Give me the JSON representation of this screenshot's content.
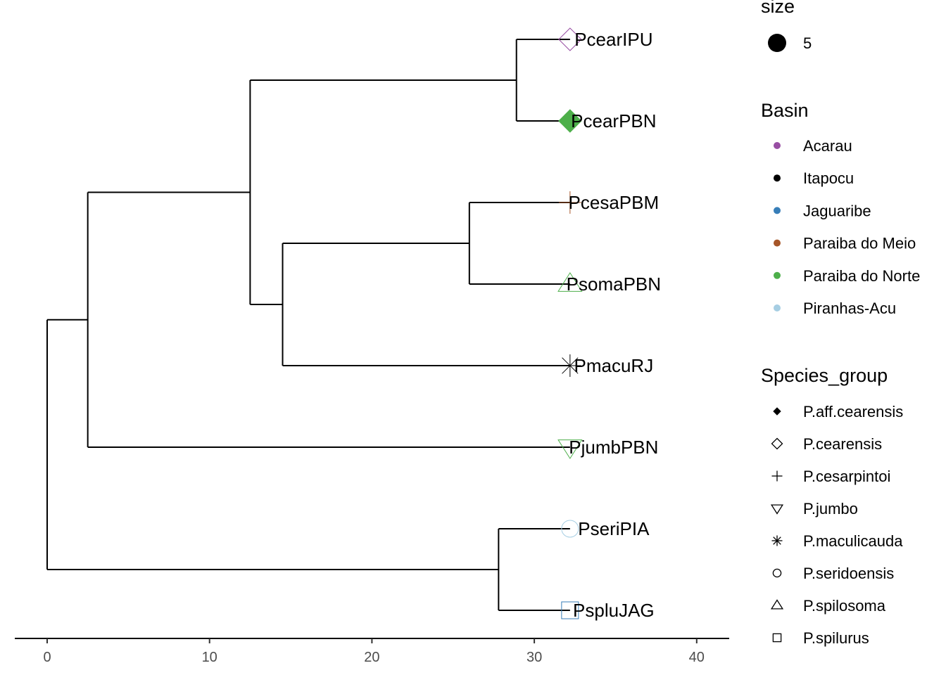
{
  "chart_data": {
    "type": "phylogenetic-tree",
    "xlim": [
      0,
      42
    ],
    "x_ticks": [
      0,
      10,
      20,
      30,
      40
    ],
    "tips": [
      {
        "label": "PcearIPU",
        "x": 32.2,
        "shape": "diamond-open",
        "color": "#984EA3"
      },
      {
        "label": "PcearPBN",
        "x": 32.2,
        "shape": "diamond-filled",
        "color": "#4DAF4A"
      },
      {
        "label": "PcesaPBM",
        "x": 32.2,
        "shape": "plus",
        "color": "#A65628"
      },
      {
        "label": "PsomaPBN",
        "x": 32.2,
        "shape": "triangle-up",
        "color": "#4DAF4A"
      },
      {
        "label": "PmacuRJ",
        "x": 32.2,
        "shape": "asterisk",
        "color": "#000000"
      },
      {
        "label": "PjumbPBN",
        "x": 32.2,
        "shape": "triangle-down",
        "color": "#4DAF4A"
      },
      {
        "label": "PseriPIA",
        "x": 32.2,
        "shape": "circle-open",
        "color": "#A6CEE3"
      },
      {
        "label": "PspluJAG",
        "x": 32.2,
        "shape": "square-open",
        "color": "#377EB8"
      }
    ],
    "nodes": [
      {
        "x": 28.9,
        "children": [
          "tip:0",
          "tip:1"
        ]
      },
      {
        "x": 26.0,
        "children": [
          "tip:2",
          "tip:3"
        ]
      },
      {
        "x": 14.5,
        "children": [
          "node:1",
          "tip:4"
        ]
      },
      {
        "x": 12.5,
        "children": [
          "node:0",
          "node:2"
        ]
      },
      {
        "x": 2.5,
        "children": [
          "node:3",
          "tip:5"
        ]
      },
      {
        "x": 27.8,
        "children": [
          "tip:6",
          "tip:7"
        ]
      },
      {
        "x": 0.0,
        "children": [
          "node:4",
          "node:5"
        ]
      }
    ]
  },
  "legend": {
    "size": {
      "title": "size",
      "items": [
        {
          "label": "5",
          "shape": "circle-filled",
          "color": "#000000"
        }
      ]
    },
    "basin": {
      "title": "Basin",
      "items": [
        {
          "label": "Acarau",
          "color": "#984EA3"
        },
        {
          "label": "Itapocu",
          "color": "#000000"
        },
        {
          "label": "Jaguaribe",
          "color": "#377EB8"
        },
        {
          "label": "Paraiba do Meio",
          "color": "#A65628"
        },
        {
          "label": "Paraiba do Norte",
          "color": "#4DAF4A"
        },
        {
          "label": "Piranhas-Acu",
          "color": "#A6CEE3"
        }
      ]
    },
    "species_group": {
      "title": "Species_group",
      "items": [
        {
          "label": "P.aff.cearensis",
          "shape": "diamond-filled"
        },
        {
          "label": "P.cearensis",
          "shape": "diamond-open"
        },
        {
          "label": "P.cesarpintoi",
          "shape": "plus"
        },
        {
          "label": "P.jumbo",
          "shape": "triangle-down"
        },
        {
          "label": "P.maculicauda",
          "shape": "asterisk"
        },
        {
          "label": "P.seridoensis",
          "shape": "circle-open"
        },
        {
          "label": "P.spilosoma",
          "shape": "triangle-up"
        },
        {
          "label": "P.spilurus",
          "shape": "square-open"
        }
      ]
    }
  }
}
